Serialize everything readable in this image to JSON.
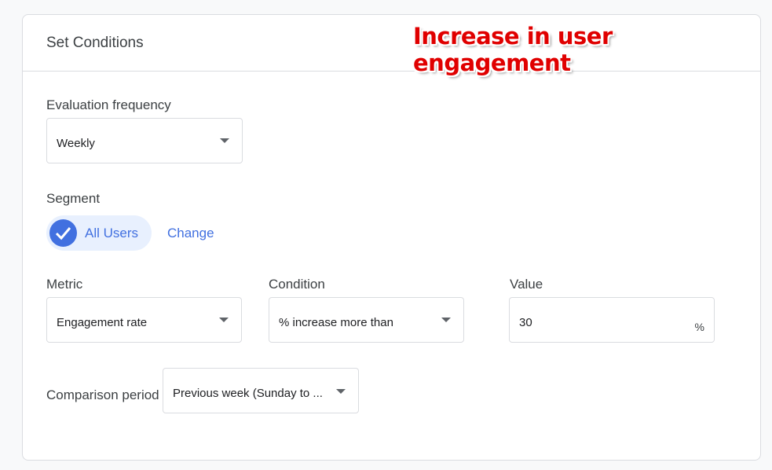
{
  "header": {
    "title": "Set Conditions",
    "overlay": "Increase in user engagement"
  },
  "evaluation": {
    "label": "Evaluation frequency",
    "value": "Weekly"
  },
  "segment": {
    "label": "Segment",
    "chip": "All Users",
    "change": "Change"
  },
  "metric": {
    "label": "Metric",
    "value": "Engagement rate"
  },
  "condition": {
    "label": "Condition",
    "value": "% increase more than"
  },
  "value": {
    "label": "Value",
    "value": "30",
    "unit": "%"
  },
  "comparison": {
    "label": "Comparison period",
    "value": "Previous week (Sunday to ..."
  },
  "colors": {
    "accent": "#4170e0",
    "chip_bg": "#e8f0fe",
    "overlay": "#e00000"
  }
}
